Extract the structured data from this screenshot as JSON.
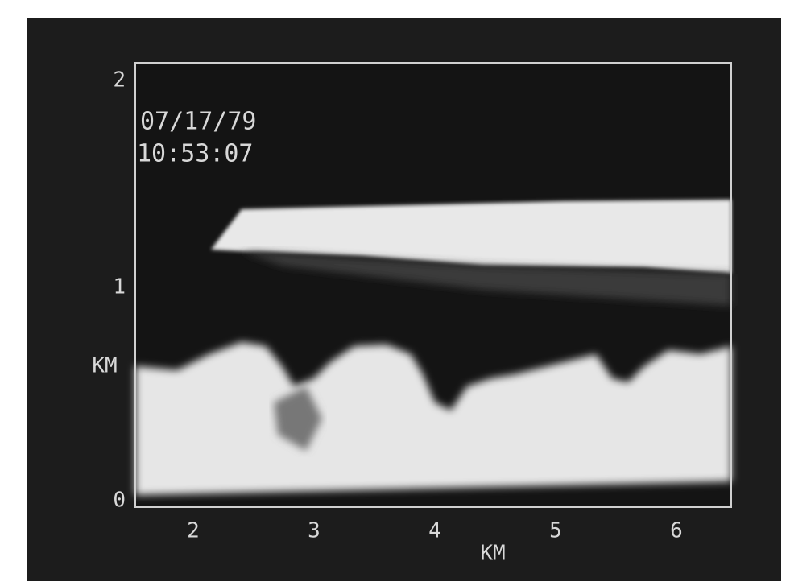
{
  "display": {
    "date": "07/17/79",
    "time": "10:53:07",
    "y_axis": {
      "label": "KM",
      "ticks": [
        "2",
        "1",
        "0"
      ]
    },
    "x_axis": {
      "label": "KM",
      "ticks": [
        "2",
        "3",
        "4",
        "5",
        "6"
      ]
    }
  }
}
